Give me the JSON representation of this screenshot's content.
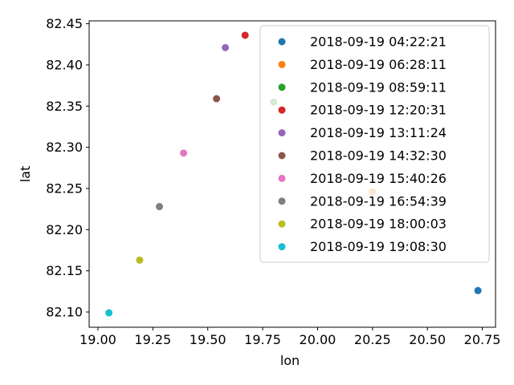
{
  "chart_data": {
    "type": "scatter",
    "xlabel": "lon",
    "ylabel": "lat",
    "xlim": [
      18.96,
      20.81
    ],
    "ylim": [
      82.0815,
      82.4535
    ],
    "x_ticks": [
      19.0,
      19.25,
      19.5,
      19.75,
      20.0,
      20.25,
      20.5,
      20.75
    ],
    "x_tick_labels": [
      "19.00",
      "19.25",
      "19.50",
      "19.75",
      "20.00",
      "20.25",
      "20.50",
      "20.75"
    ],
    "y_ticks": [
      82.1,
      82.15,
      82.2,
      82.25,
      82.3,
      82.35,
      82.4,
      82.45
    ],
    "y_tick_labels": [
      "82.10",
      "82.15",
      "82.20",
      "82.25",
      "82.30",
      "82.35",
      "82.40",
      "82.45"
    ],
    "grid": false,
    "legend_position": "top-right",
    "series": [
      {
        "name": "2018-09-19 04:22:21",
        "color": "#1f77b4",
        "x": 20.73,
        "y": 82.126
      },
      {
        "name": "2018-09-19 06:28:11",
        "color": "#ff7f0e",
        "x": 20.25,
        "y": 82.246
      },
      {
        "name": "2018-09-19 08:59:11",
        "color": "#2ca02c",
        "x": 19.8,
        "y": 82.355
      },
      {
        "name": "2018-09-19 12:20:31",
        "color": "#d62728",
        "x": 19.67,
        "y": 82.436
      },
      {
        "name": "2018-09-19 13:11:24",
        "color": "#9467bd",
        "x": 19.58,
        "y": 82.421
      },
      {
        "name": "2018-09-19 14:32:30",
        "color": "#8c564b",
        "x": 19.54,
        "y": 82.359
      },
      {
        "name": "2018-09-19 15:40:26",
        "color": "#e377c2",
        "x": 19.39,
        "y": 82.293
      },
      {
        "name": "2018-09-19 16:54:39",
        "color": "#7f7f7f",
        "x": 19.28,
        "y": 82.228
      },
      {
        "name": "2018-09-19 18:00:03",
        "color": "#bcbd22",
        "x": 19.19,
        "y": 82.163
      },
      {
        "name": "2018-09-19 19:08:30",
        "color": "#17becf",
        "x": 19.05,
        "y": 82.099
      }
    ]
  }
}
